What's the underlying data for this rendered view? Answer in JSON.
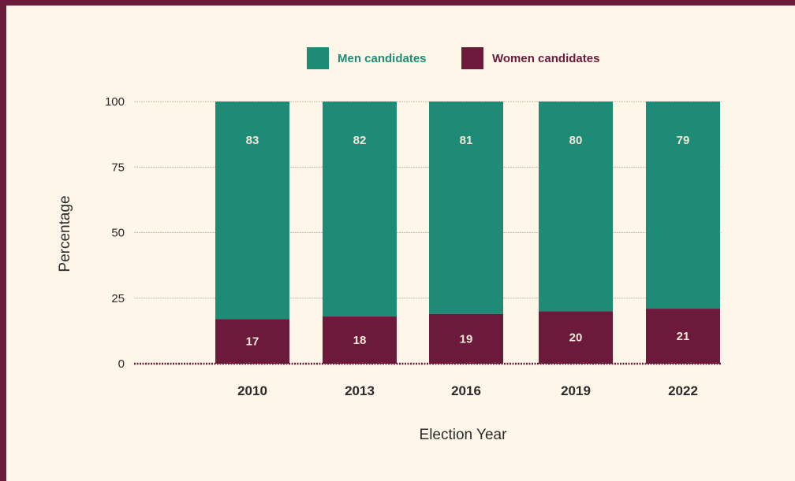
{
  "colors": {
    "men": "#1e8b77",
    "women": "#6b1a3c",
    "label_on_men": "#f2e7d5",
    "label_on_women": "#f2e7d5",
    "grid": "#c9b9a8"
  },
  "chart_data": {
    "type": "bar",
    "stacked": true,
    "categories": [
      "2010",
      "2013",
      "2016",
      "2019",
      "2022"
    ],
    "series": [
      {
        "name": "Women candidates",
        "values": [
          17,
          18,
          19,
          20,
          21
        ]
      },
      {
        "name": "Men candidates",
        "values": [
          83,
          82,
          81,
          80,
          79
        ]
      }
    ],
    "xlabel": "Election Year",
    "ylabel": "Percentage",
    "ylim": [
      0,
      100
    ],
    "yticks": [
      0,
      25,
      50,
      75,
      100
    ],
    "grid": true,
    "legend": {
      "placement": "top-center",
      "entries": [
        "Men candidates",
        "Women candidates"
      ]
    }
  }
}
